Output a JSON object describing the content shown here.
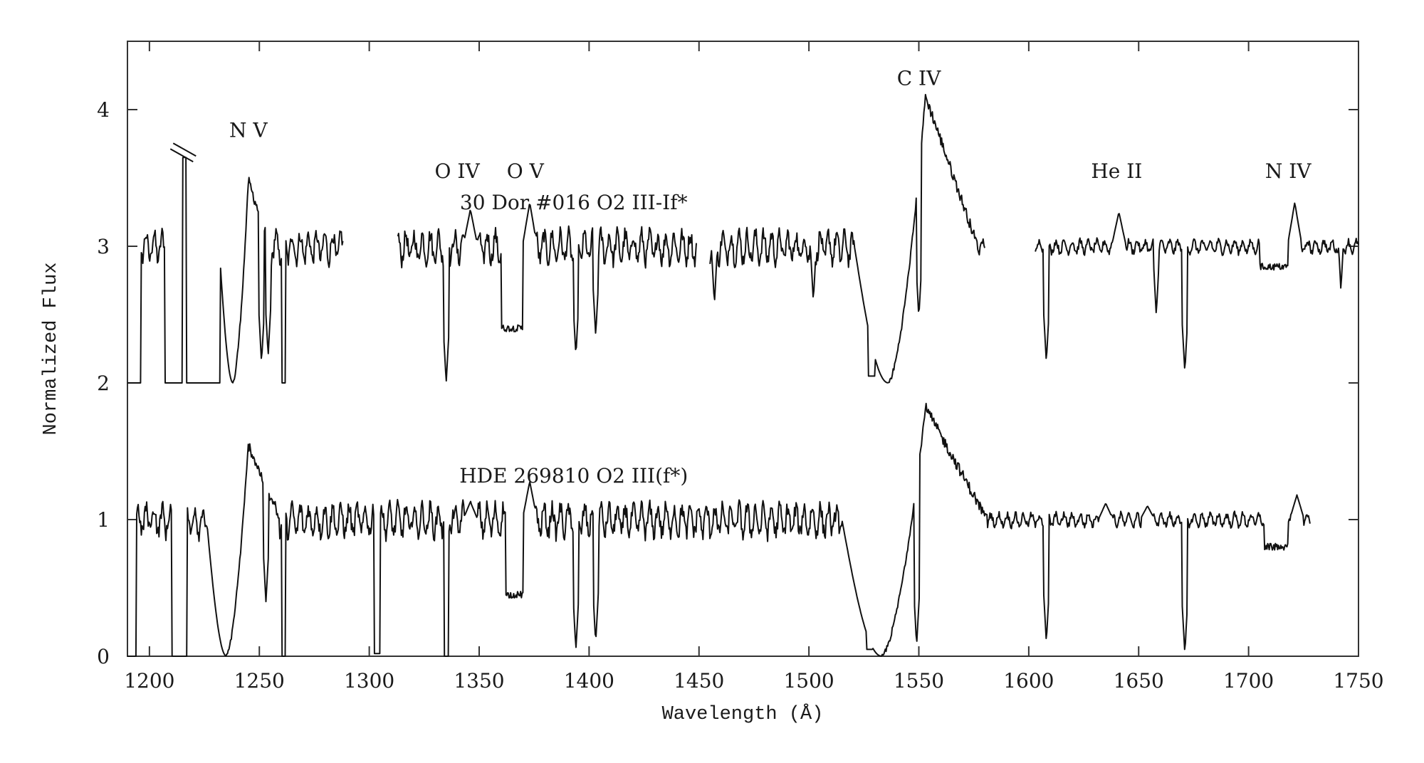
{
  "chart_data": {
    "type": "line",
    "title": "",
    "xlabel": "Wavelength (Å)",
    "ylabel": "Normalized Flux",
    "xlim": [
      1190,
      1750
    ],
    "ylim": [
      0,
      4.5
    ],
    "grid": false,
    "x_ticks": [
      1200,
      1250,
      1300,
      1350,
      1400,
      1450,
      1500,
      1550,
      1600,
      1650,
      1700,
      1750
    ],
    "x_minor_ticks_top": true,
    "y_ticks": [
      0,
      1,
      2,
      3,
      4
    ],
    "line_labels": [
      {
        "text": "N  V",
        "x": 1245,
        "y": 3.8
      },
      {
        "text": "O IV",
        "x": 1340,
        "y": 3.5
      },
      {
        "text": "O  V",
        "x": 1371,
        "y": 3.5
      },
      {
        "text": "C  IV",
        "x": 1550,
        "y": 4.18
      },
      {
        "text": "He  II",
        "x": 1640,
        "y": 3.5
      },
      {
        "text": "N  IV",
        "x": 1718,
        "y": 3.5
      }
    ],
    "series": [
      {
        "name": "30 Dor #016",
        "label": "30 Dor #016     O2 III-If*",
        "label_pos": {
          "x": 1393,
          "y": 3.27
        },
        "offset": 2,
        "segments": [
          [
            1190,
            1288
          ],
          [
            1313,
            1449
          ],
          [
            1455,
            1580
          ],
          [
            1603,
            1750
          ]
        ],
        "continuum": 3.0,
        "features": [
          {
            "type": "saturated",
            "from": 1190,
            "to": 1196,
            "level": 2.0
          },
          {
            "type": "peak",
            "at": 1193,
            "value": 2.78
          },
          {
            "type": "peak",
            "at": 1198,
            "value": 2.65
          },
          {
            "type": "peak",
            "at": 1204,
            "value": 2.28
          },
          {
            "type": "saturated",
            "from": 1207,
            "to": 1232,
            "level": 2.0
          },
          {
            "type": "geocoronal_lya",
            "at": 1216,
            "value": 3.65,
            "broken_axis_mark": true
          },
          {
            "type": "pcygni",
            "absorption_center": 1238,
            "emission_peak": 1245,
            "emission_value": 3.48
          },
          {
            "type": "absorption",
            "at": 1251,
            "depth": 2.15
          },
          {
            "type": "absorption",
            "at": 1254,
            "depth": 2.2
          },
          {
            "type": "saturated",
            "from": 1260,
            "to": 1262,
            "level": 2.0
          },
          {
            "type": "absorption",
            "at": 1335,
            "depth": 2.0
          },
          {
            "type": "peak",
            "at": 1346,
            "value": 3.27
          },
          {
            "type": "trough",
            "from": 1360,
            "to": 1372,
            "value": 2.4
          },
          {
            "type": "peak",
            "at": 1373,
            "value": 3.32
          },
          {
            "type": "absorption",
            "at": 1394,
            "depth": 2.2
          },
          {
            "type": "absorption",
            "at": 1403,
            "depth": 2.35
          },
          {
            "type": "absorption",
            "at": 1457,
            "depth": 2.58
          },
          {
            "type": "absorption",
            "at": 1502,
            "depth": 2.6
          },
          {
            "type": "saturated",
            "from": 1527,
            "to": 1530,
            "level": 2.05
          },
          {
            "type": "pcygni",
            "absorption_center": 1536,
            "emission_peak": 1553,
            "emission_value": 4.1
          },
          {
            "type": "absorption",
            "at": 1550,
            "depth": 2.48
          },
          {
            "type": "absorption",
            "at": 1608,
            "depth": 2.15
          },
          {
            "type": "peak",
            "at": 1641,
            "value": 3.25
          },
          {
            "type": "absorption",
            "at": 1658,
            "depth": 2.5
          },
          {
            "type": "absorption",
            "at": 1671,
            "depth": 2.08
          },
          {
            "type": "trough",
            "from": 1705,
            "to": 1718,
            "value": 2.85
          },
          {
            "type": "peak",
            "at": 1721,
            "value": 3.32
          },
          {
            "type": "absorption",
            "at": 1742,
            "depth": 2.68
          }
        ]
      },
      {
        "name": "HDE 269810",
        "label": "HDE 269810     O2 III(f*)",
        "label_pos": {
          "x": 1393,
          "y": 1.27
        },
        "offset": 0,
        "segments": [
          [
            1190,
            1728
          ]
        ],
        "continuum": 1.0,
        "features": [
          {
            "type": "saturated",
            "from": 1190,
            "to": 1194,
            "level": 0.0
          },
          {
            "type": "peak",
            "at": 1193,
            "value": 0.9
          },
          {
            "type": "peak",
            "at": 1203,
            "value": 0.78
          },
          {
            "type": "saturated",
            "from": 1210,
            "to": 1217,
            "level": 0.0
          },
          {
            "type": "peak",
            "at": 1222,
            "value": 0.33
          },
          {
            "type": "pcygni",
            "absorption_center": 1235,
            "emission_peak": 1245,
            "emission_value": 1.55
          },
          {
            "type": "absorption",
            "at": 1253,
            "depth": 0.4
          },
          {
            "type": "saturated",
            "from": 1260,
            "to": 1262,
            "level": 0.0
          },
          {
            "type": "saturated",
            "from": 1302,
            "to": 1305,
            "level": 0.02
          },
          {
            "type": "saturated",
            "from": 1334,
            "to": 1336,
            "level": 0.0
          },
          {
            "type": "peak",
            "at": 1346,
            "value": 1.13
          },
          {
            "type": "trough",
            "from": 1362,
            "to": 1372,
            "value": 0.45
          },
          {
            "type": "peak",
            "at": 1373,
            "value": 1.28
          },
          {
            "type": "absorption",
            "at": 1394,
            "depth": 0.05
          },
          {
            "type": "absorption",
            "at": 1403,
            "depth": 0.1
          },
          {
            "type": "saturated",
            "from": 1526,
            "to": 1529,
            "level": 0.05
          },
          {
            "type": "pcygni",
            "absorption_center": 1533,
            "emission_peak": 1553,
            "emission_value": 1.82
          },
          {
            "type": "absorption",
            "at": 1549,
            "depth": 0.08
          },
          {
            "type": "absorption",
            "at": 1608,
            "depth": 0.1
          },
          {
            "type": "peak",
            "at": 1635,
            "value": 1.12
          },
          {
            "type": "peak",
            "at": 1654,
            "value": 1.1
          },
          {
            "type": "absorption",
            "at": 1671,
            "depth": 0.02
          },
          {
            "type": "trough",
            "from": 1707,
            "to": 1718,
            "value": 0.8
          },
          {
            "type": "peak",
            "at": 1722,
            "value": 1.18
          }
        ]
      }
    ]
  }
}
